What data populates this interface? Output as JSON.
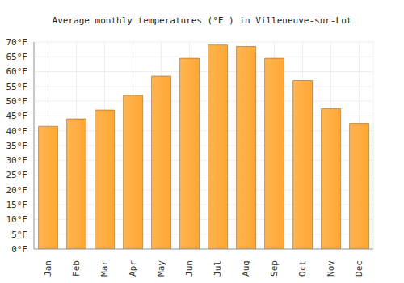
{
  "chart_data": {
    "type": "bar",
    "title": "Average monthly temperatures (°F ) in Villeneuve-sur-Lot",
    "categories": [
      "Jan",
      "Feb",
      "Mar",
      "Apr",
      "May",
      "Jun",
      "Jul",
      "Aug",
      "Sep",
      "Oct",
      "Nov",
      "Dec"
    ],
    "values": [
      41.5,
      44,
      47,
      52,
      58.5,
      64.5,
      69,
      68.5,
      64.5,
      57,
      47.5,
      42.5
    ],
    "color": "#ffa733",
    "ylim": [
      0,
      70
    ],
    "yticks": [
      {
        "value": 0,
        "label": "0°F"
      },
      {
        "value": 5,
        "label": "5°F"
      },
      {
        "value": 10,
        "label": "10°F"
      },
      {
        "value": 15,
        "label": "15°F"
      },
      {
        "value": 20,
        "label": "20°F"
      },
      {
        "value": 25,
        "label": "25°F"
      },
      {
        "value": 30,
        "label": "30°F"
      },
      {
        "value": 35,
        "label": "35°F"
      },
      {
        "value": 40,
        "label": "40°F"
      },
      {
        "value": 45,
        "label": "45°F"
      },
      {
        "value": 50,
        "label": "50°F"
      },
      {
        "value": 55,
        "label": "55°F"
      },
      {
        "value": 60,
        "label": "60°F"
      },
      {
        "value": 65,
        "label": "65°F"
      },
      {
        "value": 70,
        "label": "70°F"
      }
    ],
    "grid": true
  }
}
